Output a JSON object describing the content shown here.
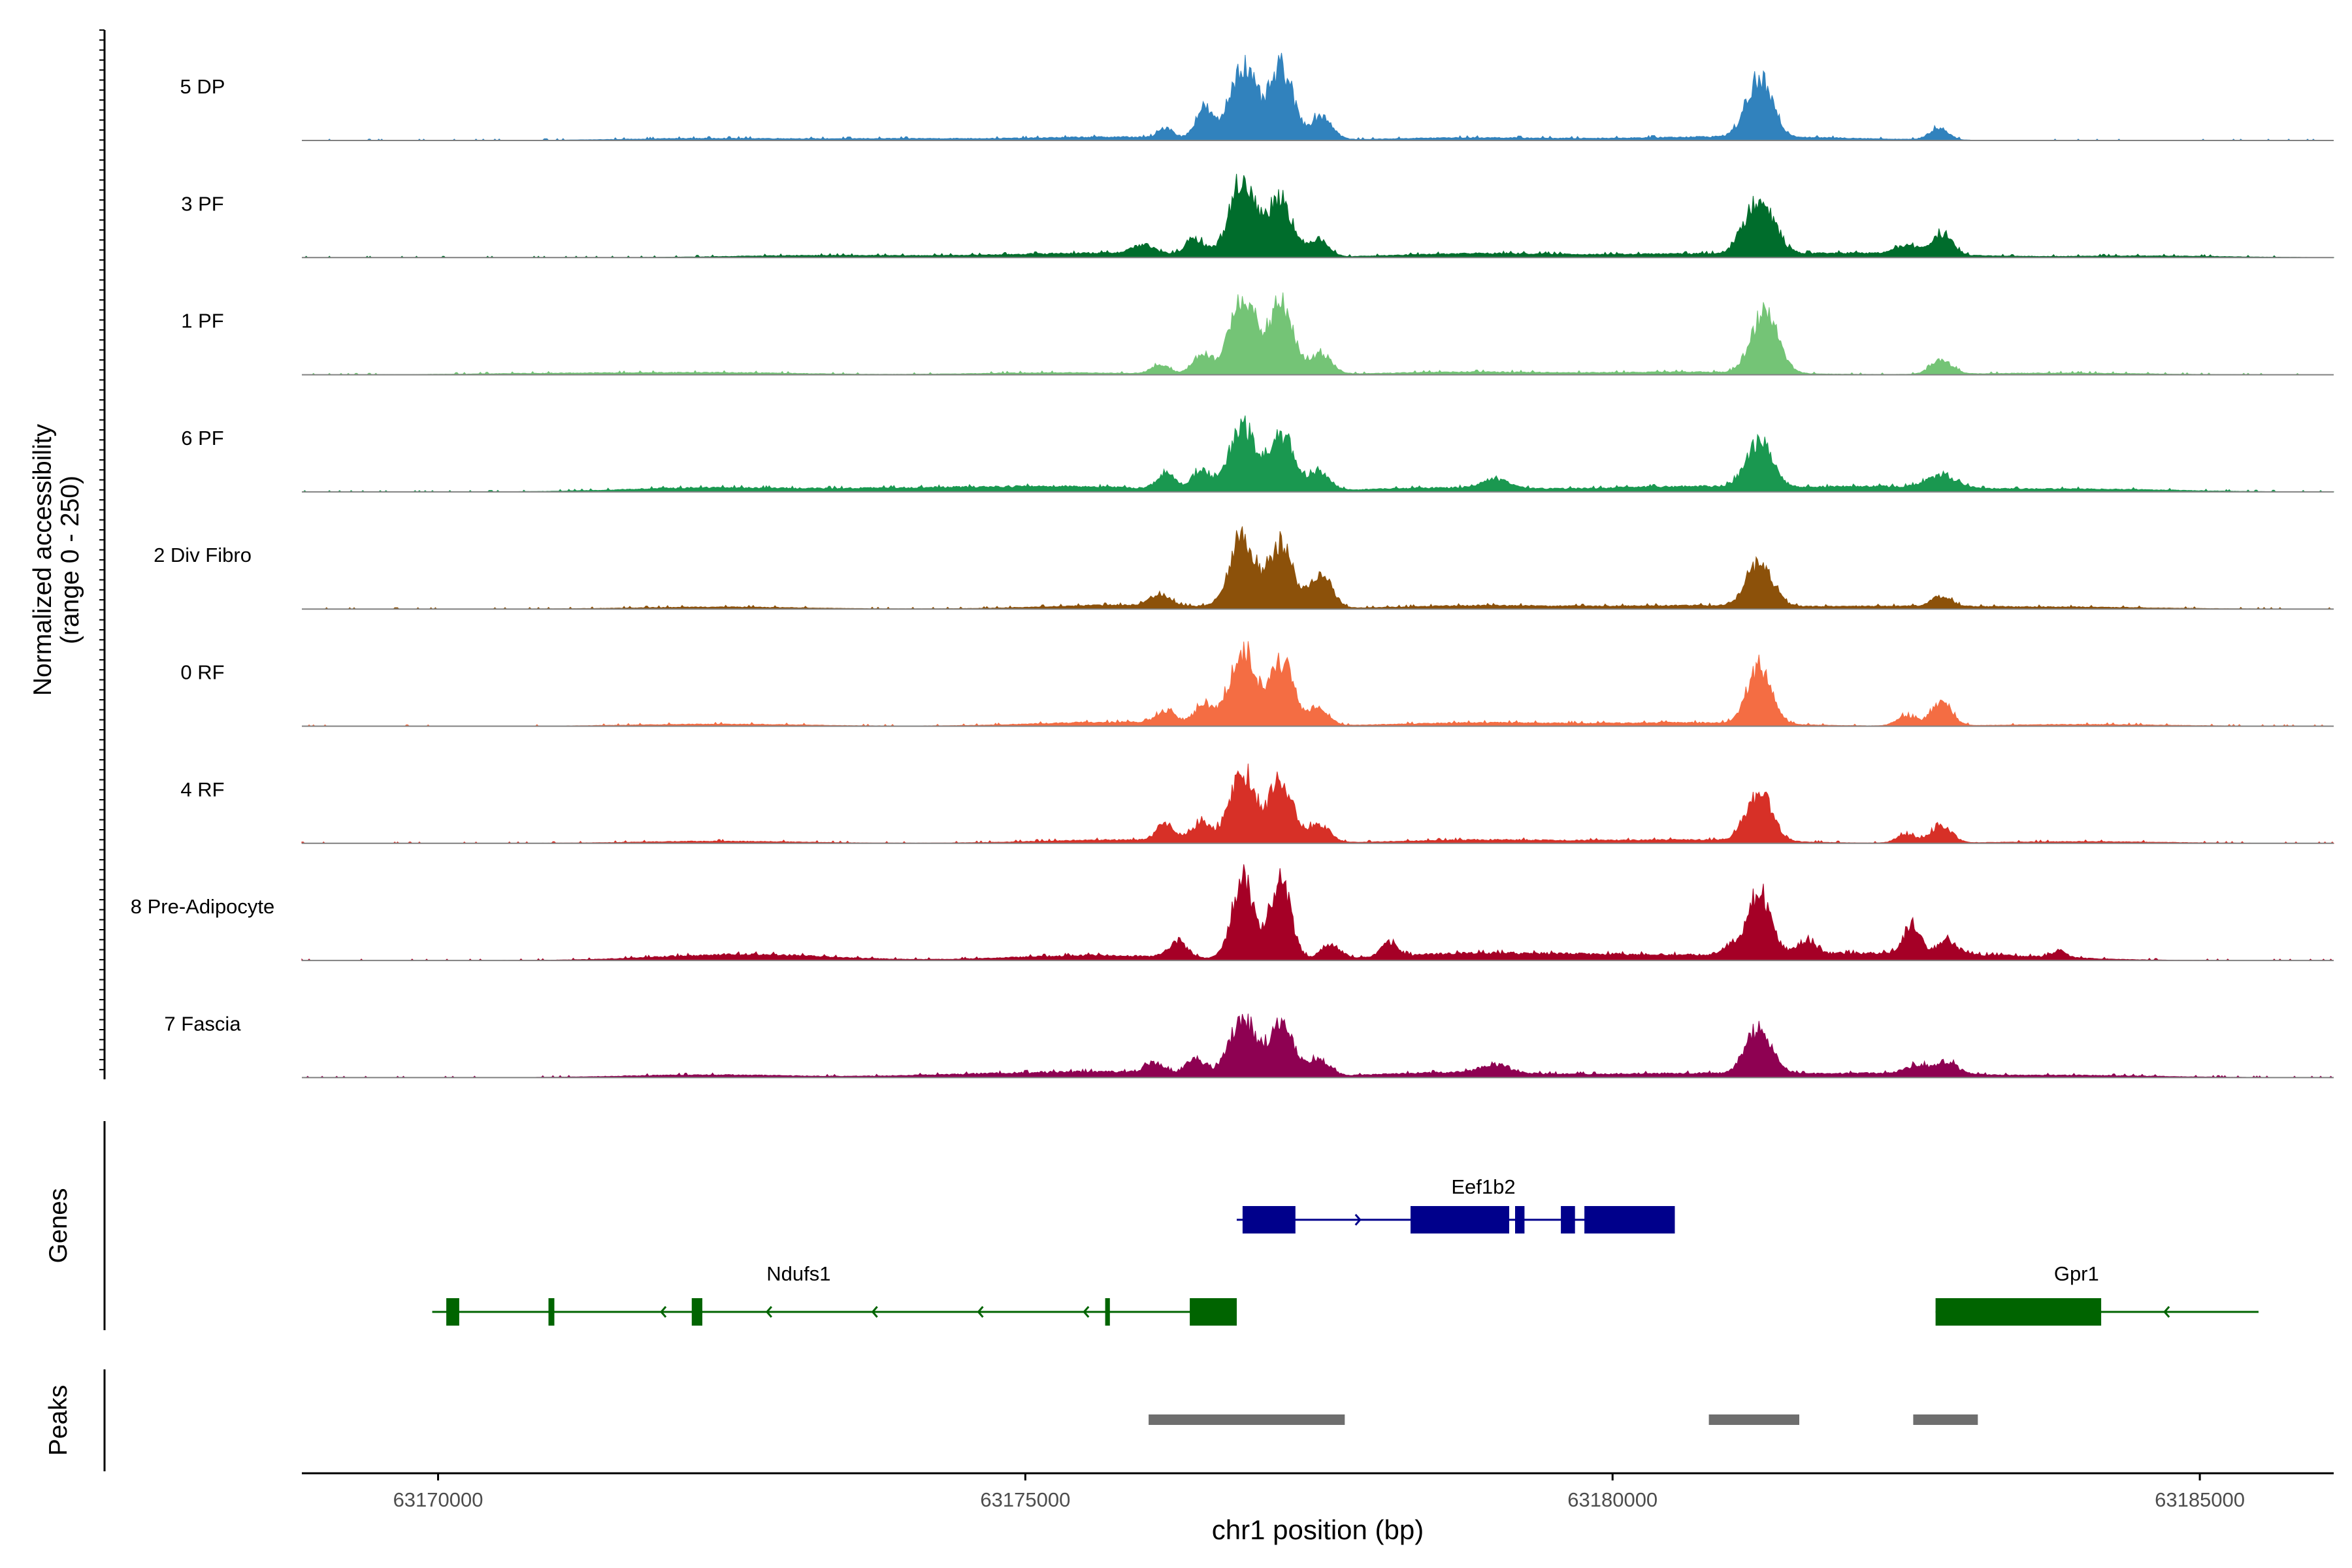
{
  "chart_data": {
    "type": "area",
    "title": "",
    "ylabel": "Normalized accessibility",
    "ylabel_range": "(range 0 - 250)",
    "ylim": [
      0,
      250
    ],
    "xlabel": "chr1 position (bp)",
    "xlim": [
      63168840,
      63186140
    ],
    "xticks": [
      63170000,
      63175000,
      63180000,
      63185000
    ],
    "xtick_labels": [
      "63170000",
      "63175000",
      "63180000",
      "63185000"
    ],
    "tracks": [
      {
        "name": "5 DP",
        "color": "#3182bd",
        "peaks": [
          [
            63176200,
            30,
            60
          ],
          [
            63176520,
            90,
            70
          ],
          [
            63176850,
            215,
            110
          ],
          [
            63177180,
            205,
            100
          ],
          [
            63177520,
            70,
            90
          ],
          [
            63181250,
            165,
            110
          ],
          [
            63182780,
            35,
            80
          ]
        ],
        "background": [
          [
            63172300,
            6
          ],
          [
            63174000,
            5
          ],
          [
            63175800,
            10
          ],
          [
            63178800,
            8
          ],
          [
            63180700,
            8
          ],
          [
            63181700,
            6
          ]
        ]
      },
      {
        "name": "3 PF",
        "color": "#006d2c",
        "peaks": [
          [
            63176000,
            25,
            90
          ],
          [
            63176450,
            45,
            80
          ],
          [
            63176850,
            220,
            110
          ],
          [
            63177170,
            175,
            100
          ],
          [
            63177500,
            55,
            80
          ],
          [
            63181250,
            165,
            120
          ],
          [
            63182500,
            25,
            90
          ],
          [
            63182800,
            60,
            90
          ]
        ],
        "background": [
          [
            63173200,
            6
          ],
          [
            63174800,
            5
          ],
          [
            63175900,
            12
          ],
          [
            63178900,
            12
          ],
          [
            63180700,
            10
          ],
          [
            63182200,
            12
          ],
          [
            63184500,
            5
          ]
        ]
      },
      {
        "name": "1 PF",
        "color": "#74c476",
        "peaks": [
          [
            63176150,
            25,
            80
          ],
          [
            63176500,
            55,
            80
          ],
          [
            63176850,
            230,
            110
          ],
          [
            63177180,
            205,
            100
          ],
          [
            63177520,
            60,
            90
          ],
          [
            63181300,
            185,
            110
          ],
          [
            63182800,
            40,
            90
          ]
        ],
        "background": [
          [
            63171000,
            4
          ],
          [
            63172400,
            6
          ],
          [
            63175300,
            6
          ],
          [
            63178800,
            8
          ],
          [
            63180700,
            8
          ],
          [
            63183800,
            5
          ]
        ]
      },
      {
        "name": "6 PF",
        "color": "#1a9850",
        "peaks": [
          [
            63176200,
            45,
            80
          ],
          [
            63176500,
            60,
            80
          ],
          [
            63176850,
            185,
            110
          ],
          [
            63177180,
            165,
            100
          ],
          [
            63177500,
            55,
            90
          ],
          [
            63179000,
            25,
            120
          ],
          [
            63181250,
            135,
            110
          ],
          [
            63182800,
            35,
            120
          ]
        ],
        "background": [
          [
            63172300,
            12
          ],
          [
            63174000,
            10
          ],
          [
            63175400,
            15
          ],
          [
            63178600,
            12
          ],
          [
            63180600,
            15
          ],
          [
            63182300,
            15
          ],
          [
            63184100,
            8
          ]
        ]
      },
      {
        "name": "2 Div Fibro",
        "color": "#8c510a",
        "peaks": [
          [
            63176150,
            35,
            80
          ],
          [
            63176850,
            205,
            110
          ],
          [
            63177180,
            185,
            100
          ],
          [
            63177520,
            105,
            90
          ],
          [
            63181250,
            125,
            110
          ],
          [
            63182800,
            30,
            80
          ]
        ],
        "background": [
          [
            63172400,
            6
          ],
          [
            63175900,
            12
          ],
          [
            63178900,
            10
          ],
          [
            63180700,
            10
          ],
          [
            63182500,
            8
          ],
          [
            63184000,
            5
          ]
        ]
      },
      {
        "name": "0 RF",
        "color": "#f46d43",
        "peaks": [
          [
            63176200,
            35,
            80
          ],
          [
            63176520,
            55,
            80
          ],
          [
            63176850,
            215,
            110
          ],
          [
            63177180,
            185,
            100
          ],
          [
            63177500,
            55,
            80
          ],
          [
            63181250,
            165,
            100
          ],
          [
            63182500,
            30,
            80
          ],
          [
            63182800,
            65,
            90
          ]
        ],
        "background": [
          [
            63172400,
            6
          ],
          [
            63175800,
            12
          ],
          [
            63178900,
            10
          ],
          [
            63180700,
            10
          ],
          [
            63184000,
            5
          ]
        ]
      },
      {
        "name": "4 RF",
        "color": "#d73027",
        "peaks": [
          [
            63176200,
            45,
            80
          ],
          [
            63176500,
            55,
            80
          ],
          [
            63176850,
            205,
            110
          ],
          [
            63177180,
            175,
            100
          ],
          [
            63177500,
            55,
            90
          ],
          [
            63181250,
            135,
            110
          ],
          [
            63182500,
            25,
            80
          ],
          [
            63182800,
            50,
            90
          ]
        ],
        "background": [
          [
            63172400,
            6
          ],
          [
            63175800,
            10
          ],
          [
            63178900,
            10
          ],
          [
            63180700,
            10
          ],
          [
            63184000,
            5
          ]
        ]
      },
      {
        "name": "8 Pre-Adipocyte",
        "color": "#a50026",
        "peaks": [
          [
            63176300,
            45,
            80
          ],
          [
            63176850,
            240,
            90
          ],
          [
            63177170,
            235,
            90
          ],
          [
            63177600,
            45,
            80
          ],
          [
            63178100,
            40,
            70
          ],
          [
            63181000,
            25,
            80
          ],
          [
            63181250,
            180,
            100
          ],
          [
            63181650,
            40,
            80
          ],
          [
            63182550,
            80,
            70
          ],
          [
            63182850,
            40,
            80
          ],
          [
            63183800,
            20,
            60
          ]
        ],
        "background": [
          [
            63172600,
            18
          ],
          [
            63175600,
            15
          ],
          [
            63178800,
            20
          ],
          [
            63180300,
            15
          ],
          [
            63182000,
            18
          ],
          [
            63183200,
            12
          ]
        ]
      },
      {
        "name": "7 Fascia",
        "color": "#8e0152",
        "peaks": [
          [
            63176100,
            30,
            80
          ],
          [
            63176450,
            45,
            80
          ],
          [
            63176850,
            170,
            110
          ],
          [
            63177180,
            160,
            100
          ],
          [
            63177500,
            50,
            90
          ],
          [
            63179000,
            25,
            120
          ],
          [
            63181250,
            130,
            110
          ],
          [
            63182600,
            25,
            100
          ],
          [
            63182850,
            35,
            90
          ]
        ],
        "background": [
          [
            63172300,
            8
          ],
          [
            63174600,
            8
          ],
          [
            63175800,
            15
          ],
          [
            63178700,
            15
          ],
          [
            63180600,
            12
          ],
          [
            63182300,
            12
          ],
          [
            63184000,
            6
          ]
        ]
      }
    ],
    "genes_label": "Genes",
    "genes": [
      {
        "name": "Eef1b2",
        "strand": "+",
        "color": "#00008b",
        "start": 63176800,
        "end": 63180530,
        "exons": [
          [
            63176850,
            63177300
          ],
          [
            63178280,
            63179120
          ],
          [
            63179170,
            63179250
          ],
          [
            63179560,
            63179680
          ],
          [
            63179760,
            63180530
          ]
        ]
      },
      {
        "name": "Ndufs1",
        "strand": "-",
        "color": "#006400",
        "start": 63169950,
        "end": 63176800,
        "exons": [
          [
            63170070,
            63170180
          ],
          [
            63170940,
            63170990
          ],
          [
            63172160,
            63172250
          ],
          [
            63175680,
            63175720
          ],
          [
            63176400,
            63176800
          ]
        ]
      },
      {
        "name": "Gpr1",
        "strand": "-",
        "color": "#006400",
        "start": 63182750,
        "end": 63185500,
        "exons": [
          [
            63182750,
            63184160
          ]
        ]
      }
    ],
    "peaks_label": "Peaks",
    "peak_regions": [
      [
        63176050,
        63177720
      ],
      [
        63180820,
        63181590
      ],
      [
        63182560,
        63183110
      ]
    ]
  }
}
